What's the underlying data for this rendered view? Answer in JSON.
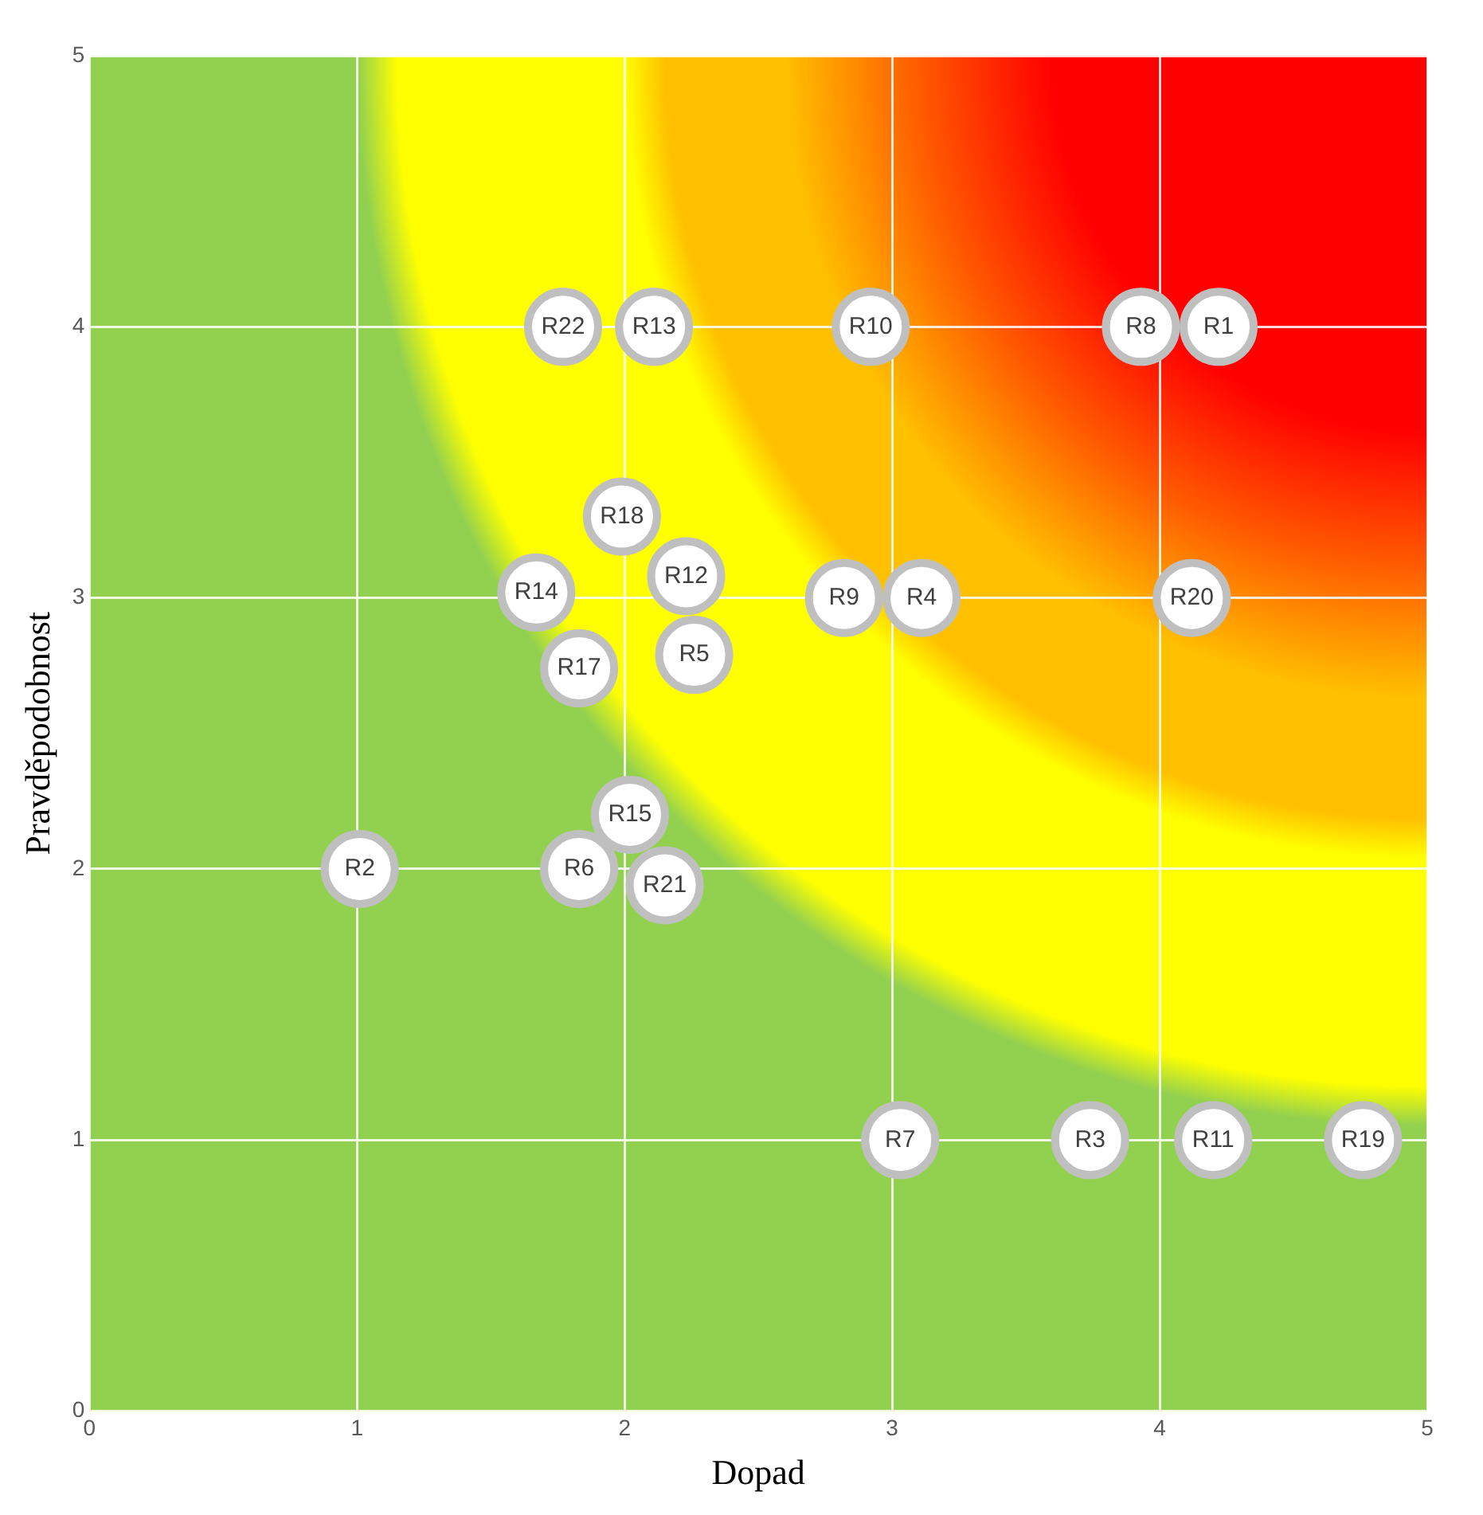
{
  "chart_data": {
    "type": "scatter",
    "xlabel": "Dopad",
    "ylabel": "Pravděpodobnost",
    "xlim": [
      0,
      5
    ],
    "ylim": [
      0,
      5
    ],
    "xticks": [
      0,
      1,
      2,
      3,
      4,
      5
    ],
    "yticks": [
      0,
      1,
      2,
      3,
      4,
      5
    ],
    "grid": true,
    "marker": "circle",
    "series": [
      {
        "name": "R22",
        "color": "#ffffff",
        "x": [
          1.77
        ],
        "values": [
          4
        ]
      },
      {
        "name": "R13",
        "color": "#ffffff",
        "x": [
          2.11
        ],
        "values": [
          4
        ]
      },
      {
        "name": "R10",
        "color": "#ffffff",
        "x": [
          2.92
        ],
        "values": [
          4
        ]
      },
      {
        "name": "R8",
        "color": "#ffffff",
        "x": [
          3.93
        ],
        "values": [
          4
        ]
      },
      {
        "name": "R1",
        "color": "#ffffff",
        "x": [
          4.22
        ],
        "values": [
          4
        ]
      },
      {
        "name": "R18",
        "color": "#ffffff",
        "x": [
          1.99
        ],
        "values": [
          3.3
        ]
      },
      {
        "name": "R14",
        "color": "#ffffff",
        "x": [
          1.67
        ],
        "values": [
          3.02
        ]
      },
      {
        "name": "R12",
        "color": "#ffffff",
        "x": [
          2.23
        ],
        "values": [
          3.08
        ]
      },
      {
        "name": "R17",
        "color": "#ffffff",
        "x": [
          1.83
        ],
        "values": [
          2.74
        ]
      },
      {
        "name": "R5",
        "color": "#ffffff",
        "x": [
          2.26
        ],
        "values": [
          2.79
        ]
      },
      {
        "name": "R9",
        "color": "#ffffff",
        "x": [
          2.82
        ],
        "values": [
          3
        ]
      },
      {
        "name": "R4",
        "color": "#ffffff",
        "x": [
          3.11
        ],
        "values": [
          3
        ]
      },
      {
        "name": "R20",
        "color": "#ffffff",
        "x": [
          4.12
        ],
        "values": [
          3
        ]
      },
      {
        "name": "R15",
        "color": "#ffffff",
        "x": [
          2.02
        ],
        "values": [
          2.2
        ]
      },
      {
        "name": "R2",
        "color": "#ffffff",
        "x": [
          1.01
        ],
        "values": [
          2
        ]
      },
      {
        "name": "R6",
        "color": "#ffffff",
        "x": [
          1.83
        ],
        "values": [
          2
        ]
      },
      {
        "name": "R21",
        "color": "#ffffff",
        "x": [
          2.15
        ],
        "values": [
          1.94
        ]
      },
      {
        "name": "R7",
        "color": "#ffffff",
        "x": [
          3.03
        ],
        "values": [
          1
        ]
      },
      {
        "name": "R3",
        "color": "#ffffff",
        "x": [
          3.74
        ],
        "values": [
          1
        ]
      },
      {
        "name": "R11",
        "color": "#ffffff",
        "x": [
          4.2
        ],
        "values": [
          1
        ]
      },
      {
        "name": "R19",
        "color": "#ffffff",
        "x": [
          4.76
        ],
        "values": [
          1
        ]
      }
    ]
  }
}
